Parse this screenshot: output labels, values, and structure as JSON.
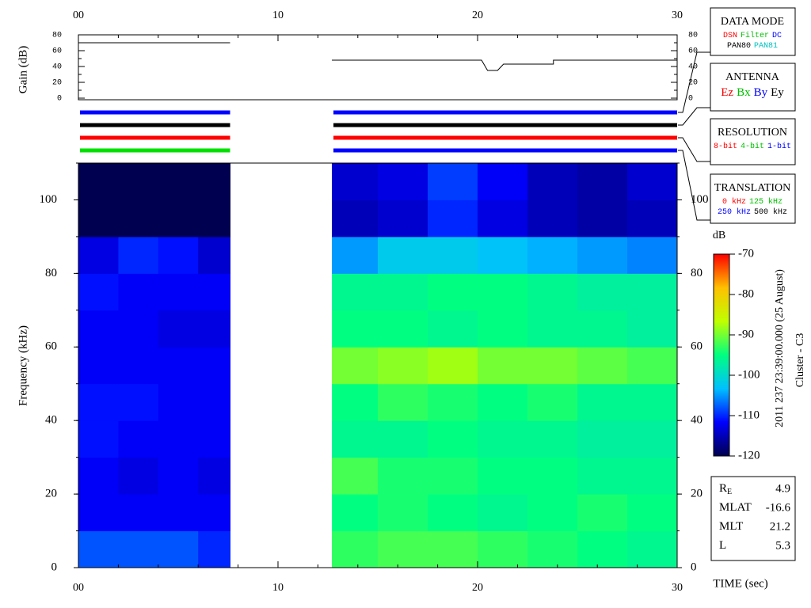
{
  "chart_data": [
    {
      "type": "line",
      "ylabel": "Gain (dB)",
      "x": [
        0,
        7.6,
        null,
        12.7,
        12.75,
        null,
        12.7,
        20.2,
        20.5,
        21.0,
        21.3,
        23.8,
        23.8,
        30
      ],
      "values": [
        70,
        70,
        null,
        80,
        80,
        null,
        48,
        48,
        35,
        35,
        43,
        43,
        48,
        48
      ],
      "color": "#000000",
      "xlim": [
        0,
        30
      ],
      "xticks": [
        {
          "value": 0,
          "label": "00"
        },
        10,
        20,
        30
      ],
      "x_minor_step": 2,
      "ylim": [
        0,
        80
      ],
      "yticks": [
        0,
        20,
        40,
        60,
        80
      ],
      "y_minor_step": 10
    },
    {
      "type": "heatmap",
      "xlabel": "TIME (sec)",
      "ylabel": "Frequency (kHz)",
      "x_edges": [
        0,
        2,
        4,
        6,
        7.6,
        12.7,
        15,
        17.5,
        20,
        22.5,
        25,
        27.5,
        30
      ],
      "y_edges": [
        0,
        10,
        20,
        30,
        40,
        50,
        60,
        70,
        80,
        90,
        100,
        110
      ],
      "z": [
        [
          -108,
          -108,
          -108,
          -110,
          null,
          -93,
          -92,
          -92,
          -93,
          -94,
          -95,
          -96
        ],
        [
          -112,
          -112,
          -112,
          -112,
          null,
          -95,
          -94,
          -95,
          -96,
          -95,
          -94,
          -95
        ],
        [
          -112,
          -113,
          -112,
          -113,
          null,
          -92,
          -94,
          -94,
          -95,
          -95,
          -96,
          -96
        ],
        [
          -111,
          -112,
          -112,
          -112,
          null,
          -96,
          -96,
          -95,
          -96,
          -96,
          -97,
          -97
        ],
        [
          -111,
          -111,
          -112,
          -112,
          null,
          -95,
          -93,
          -94,
          -95,
          -94,
          -96,
          -96
        ],
        [
          -112,
          -112,
          -112,
          -112,
          null,
          -90,
          -89,
          -88,
          -90,
          -90,
          -91,
          -92
        ],
        [
          -112,
          -112,
          -113,
          -113,
          null,
          -95,
          -95,
          -96,
          -95,
          -96,
          -96,
          -97
        ],
        [
          -111,
          -112,
          -112,
          -112,
          null,
          -96,
          -96,
          -95,
          -95,
          -96,
          -97,
          -97
        ],
        [
          -113,
          -110,
          -111,
          -114,
          null,
          -105,
          -102,
          -102,
          -103,
          -104,
          -105,
          -106
        ],
        [
          -120,
          -120,
          -120,
          -120,
          null,
          -115,
          -114,
          -110,
          -113,
          -115,
          -116,
          -115
        ],
        [
          -120,
          -120,
          -120,
          -120,
          null,
          -114,
          -113,
          -109,
          -112,
          -115,
          -116,
          -114
        ]
      ],
      "xlim": [
        0,
        30
      ],
      "xticks": [
        {
          "value": 0,
          "label": "00"
        },
        10,
        20,
        30
      ],
      "x_minor_step": 2,
      "ylim": [
        0,
        110
      ],
      "yticks": [
        0,
        20,
        40,
        60,
        80,
        100
      ],
      "y_minor_step": 10,
      "colorbar": {
        "title": "dB",
        "lim": [
          -120,
          -70
        ],
        "ticks": [
          -70,
          -80,
          -90,
          -100,
          -110,
          -120
        ],
        "colorscale": [
          "#000050",
          "#0000ff",
          "#00c0ff",
          "#00ff80",
          "#c0ff00",
          "#ffc000",
          "#ff0000"
        ]
      }
    }
  ],
  "legend_boxes": [
    {
      "title": "DATA MODE",
      "rows": [
        [
          {
            "text": "DSN",
            "color": "#ff0000"
          },
          {
            "text": "Filter",
            "color": "#00c000"
          },
          {
            "text": "DC",
            "color": "#0000ff"
          }
        ],
        [
          {
            "text": "PAN80",
            "color": "#000000"
          },
          {
            "text": "PAN81",
            "color": "#00c0c0"
          }
        ]
      ],
      "segments": [
        [
          0,
          7.6
        ],
        [
          12.7,
          30
        ]
      ],
      "segment_colors": [
        "#0000ff",
        "#0000ff"
      ]
    },
    {
      "title": "ANTENNA",
      "rows": [
        [
          {
            "text": "Ez",
            "color": "#ff0000"
          },
          {
            "text": "Bx",
            "color": "#00c000"
          },
          {
            "text": "By",
            "color": "#0000ff"
          },
          {
            "text": "Ey",
            "color": "#000000"
          }
        ]
      ],
      "segments": [
        [
          0,
          7.6
        ],
        [
          12.7,
          30
        ]
      ],
      "segment_colors": [
        "#000000",
        "#000000"
      ]
    },
    {
      "title": "RESOLUTION",
      "rows": [
        [
          {
            "text": "8-bit",
            "color": "#ff0000"
          },
          {
            "text": "4-bit",
            "color": "#00c000"
          },
          {
            "text": "1-bit",
            "color": "#0000ff"
          }
        ]
      ],
      "segments": [
        [
          0,
          7.6
        ],
        [
          12.7,
          30
        ]
      ],
      "segment_colors": [
        "#ff0000",
        "#ff0000"
      ]
    },
    {
      "title": "TRANSLATION",
      "rows": [
        [
          {
            "text": "0 kHz",
            "color": "#ff0000"
          },
          {
            "text": "125 kHz",
            "color": "#00c000"
          }
        ],
        [
          {
            "text": "250 kHz",
            "color": "#0000ff"
          },
          {
            "text": "500 kHz",
            "color": "#000000"
          }
        ]
      ],
      "segments": [
        [
          0,
          7.6
        ],
        [
          12.7,
          30
        ]
      ],
      "segment_colors": [
        "#00e000",
        "#0000ff"
      ]
    }
  ],
  "info": [
    {
      "label": "R",
      "sub": "E",
      "value": 4.9
    },
    {
      "label": "MLAT",
      "value": -16.6
    },
    {
      "label": "MLT",
      "value": 21.2
    },
    {
      "label": "L",
      "value": 5.3
    }
  ],
  "side_text": [
    "2011 237 23:39:00.000 (25 August)",
    "Cluster - C3"
  ]
}
